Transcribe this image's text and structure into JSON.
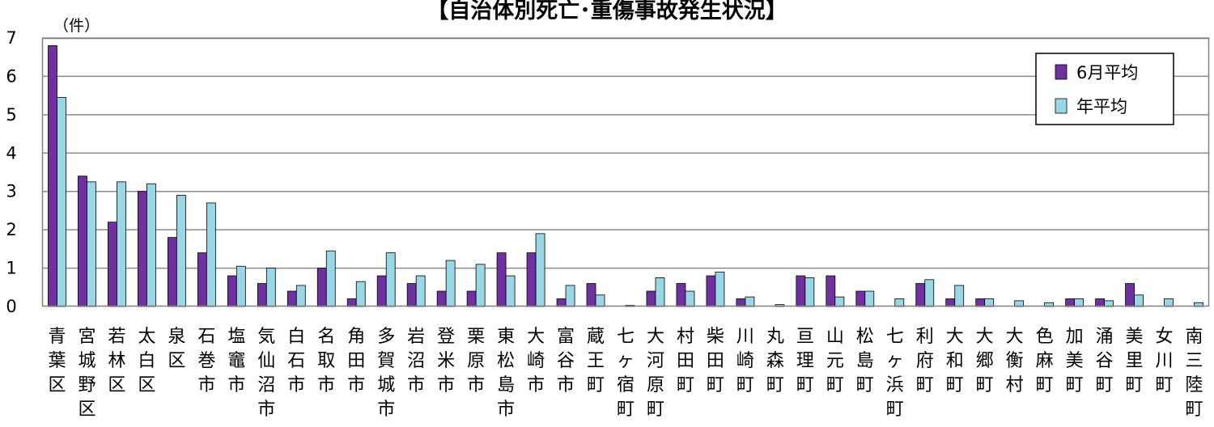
{
  "chart_data": {
    "type": "bar",
    "title": "【自治体別死亡･重傷事故発生状況】",
    "unit_label": "（件）",
    "ylim": [
      0,
      7
    ],
    "yticks": [
      0,
      1,
      2,
      3,
      4,
      5,
      6,
      7
    ],
    "grid": true,
    "legend_position": "top-right",
    "categories": [
      "青葉区",
      "宮城野区",
      "若林区",
      "太白区",
      "泉区",
      "石巻市",
      "塩竈市",
      "気仙沼市",
      "白石市",
      "名取市",
      "角田市",
      "多賀城市",
      "岩沼市",
      "登米市",
      "栗原市",
      "東松島市",
      "大崎市",
      "富谷市",
      "蔵王町",
      "七ヶ宿町",
      "大河原町",
      "村田町",
      "柴田町",
      "川崎町",
      "丸森町",
      "亘理町",
      "山元町",
      "松島町",
      "七ヶ浜町",
      "利府町",
      "大和町",
      "大郷町",
      "大衡村",
      "色麻町",
      "加美町",
      "涌谷町",
      "美里町",
      "女川町",
      "南三陸町"
    ],
    "series": [
      {
        "name": "6月平均",
        "color": "#7030a0",
        "values": [
          6.8,
          3.4,
          2.2,
          3.0,
          1.8,
          1.4,
          0.8,
          0.6,
          0.4,
          1.0,
          0.2,
          0.8,
          0.6,
          0.4,
          0.4,
          1.4,
          1.4,
          0.2,
          0.6,
          0,
          0.4,
          0.6,
          0.8,
          0.2,
          0,
          0.8,
          0.8,
          0.4,
          0,
          0.6,
          0.2,
          0.2,
          0,
          0,
          0.2,
          0.2,
          0.6,
          0,
          0
        ]
      },
      {
        "name": "年平均",
        "color": "#99d6e6",
        "values": [
          5.45,
          3.25,
          3.25,
          3.2,
          2.9,
          2.7,
          1.05,
          1.0,
          0.55,
          1.45,
          0.65,
          1.4,
          0.8,
          1.2,
          1.1,
          0.8,
          1.9,
          0.55,
          0.3,
          0.03,
          0.75,
          0.4,
          0.9,
          0.25,
          0.05,
          0.75,
          0.25,
          0.4,
          0.2,
          0.7,
          0.55,
          0.2,
          0.15,
          0.1,
          0.2,
          0.15,
          0.3,
          0.2,
          0.1
        ]
      }
    ]
  }
}
